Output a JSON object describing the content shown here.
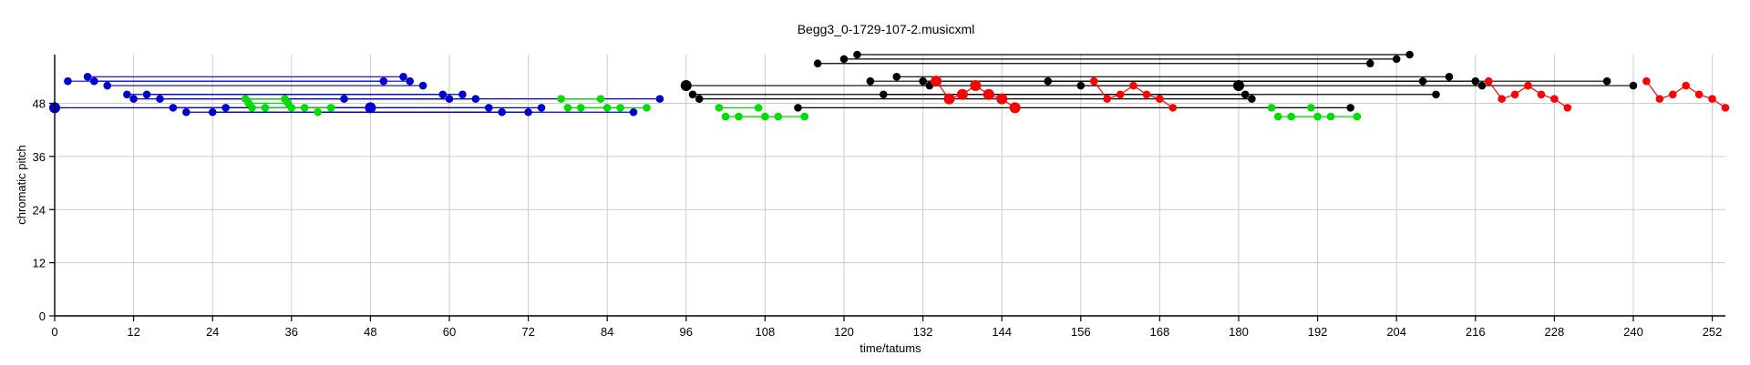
{
  "chart_data": {
    "type": "scatter",
    "title": "Begg3_0-1729-107-2.musicxml",
    "xlabel": "time/tatums",
    "ylabel": "chromatic pitch",
    "xlim": [
      0,
      254
    ],
    "ylim": [
      0,
      59
    ],
    "xticks": [
      0,
      12,
      24,
      36,
      48,
      60,
      72,
      84,
      96,
      108,
      120,
      132,
      144,
      156,
      168,
      180,
      192,
      204,
      216,
      228,
      240,
      252
    ],
    "yticks": [
      0,
      12,
      24,
      36,
      48
    ],
    "grid": true,
    "colors": {
      "blue": "#0000cc",
      "green": "#00dd00",
      "black": "#000000",
      "red": "#ff0000",
      "grid": "#cccccc"
    },
    "series": [
      {
        "color": "blue",
        "points": [
          [
            2,
            53,
            "s"
          ],
          [
            5,
            54,
            "s"
          ],
          [
            6,
            53,
            "s"
          ],
          [
            8,
            52,
            "s"
          ],
          [
            11,
            50,
            "s"
          ],
          [
            12,
            49,
            "s"
          ],
          [
            14,
            50,
            "s"
          ],
          [
            16,
            49,
            "s"
          ],
          [
            18,
            47,
            "s"
          ],
          [
            20,
            46,
            "s"
          ],
          [
            24,
            46,
            "s"
          ],
          [
            26,
            47,
            "s"
          ],
          [
            44,
            49,
            "s"
          ],
          [
            50,
            53,
            "s"
          ],
          [
            53,
            54,
            "s"
          ],
          [
            54,
            53,
            "s"
          ],
          [
            56,
            52,
            "s"
          ],
          [
            59,
            50,
            "s"
          ],
          [
            60,
            49,
            "s"
          ],
          [
            62,
            50,
            "s"
          ],
          [
            64,
            49,
            "s"
          ],
          [
            66,
            47,
            "s"
          ],
          [
            68,
            46,
            "s"
          ],
          [
            72,
            46,
            "s"
          ],
          [
            74,
            47,
            "s"
          ],
          [
            88,
            46,
            "s"
          ],
          [
            92,
            49,
            "s"
          ],
          [
            0,
            47,
            "l"
          ],
          [
            48,
            47,
            "l"
          ]
        ],
        "segments": [
          [
            0,
            47,
            48,
            47
          ],
          [
            2,
            53,
            50,
            53
          ],
          [
            5,
            54,
            53,
            54
          ],
          [
            6,
            53,
            54,
            53
          ],
          [
            8,
            52,
            56,
            52
          ],
          [
            11,
            50,
            59,
            50
          ],
          [
            12,
            49,
            60,
            49
          ],
          [
            14,
            50,
            62,
            50
          ],
          [
            16,
            49,
            64,
            49
          ],
          [
            18,
            47,
            66,
            47
          ],
          [
            20,
            46,
            68,
            46
          ],
          [
            24,
            46,
            72,
            46
          ],
          [
            26,
            47,
            74,
            47
          ],
          [
            44,
            49,
            92,
            49
          ],
          [
            40,
            46,
            88,
            46
          ]
        ]
      },
      {
        "color": "green",
        "points": [
          [
            29,
            49,
            "s"
          ],
          [
            29.5,
            48,
            "s"
          ],
          [
            30,
            47,
            "s"
          ],
          [
            32,
            47,
            "s"
          ],
          [
            35,
            49,
            "s"
          ],
          [
            35.5,
            48,
            "s"
          ],
          [
            36,
            47,
            "s"
          ],
          [
            38,
            47,
            "s"
          ],
          [
            40,
            46,
            "s"
          ],
          [
            42,
            47,
            "s"
          ],
          [
            77,
            49,
            "s"
          ],
          [
            78,
            47,
            "s"
          ],
          [
            80,
            47,
            "s"
          ],
          [
            83,
            49,
            "s"
          ],
          [
            84,
            47,
            "s"
          ],
          [
            86,
            47,
            "s"
          ],
          [
            90,
            47,
            "s"
          ],
          [
            101,
            47,
            "s"
          ],
          [
            102,
            45,
            "s"
          ],
          [
            104,
            45,
            "s"
          ],
          [
            107,
            47,
            "s"
          ],
          [
            108,
            45,
            "s"
          ],
          [
            110,
            45,
            "s"
          ],
          [
            114,
            45,
            "s"
          ],
          [
            185,
            47,
            "s"
          ],
          [
            186,
            45,
            "s"
          ],
          [
            188,
            45,
            "s"
          ],
          [
            191,
            47,
            "s"
          ],
          [
            192,
            45,
            "s"
          ],
          [
            194,
            45,
            "s"
          ],
          [
            198,
            45,
            "s"
          ]
        ],
        "segments": [
          [
            29,
            49,
            35,
            49
          ],
          [
            29.5,
            48,
            35.5,
            48
          ],
          [
            30,
            47,
            36,
            47
          ],
          [
            32,
            47,
            38,
            47
          ],
          [
            36,
            47,
            42,
            47
          ],
          [
            77,
            49,
            83,
            49
          ],
          [
            78,
            47,
            84,
            47
          ],
          [
            80,
            47,
            86,
            47
          ],
          [
            84,
            47,
            90,
            47
          ],
          [
            101,
            47,
            107,
            47
          ],
          [
            102,
            45,
            108,
            45
          ],
          [
            104,
            45,
            110,
            45
          ],
          [
            108,
            45,
            114,
            45
          ],
          [
            185,
            47,
            191,
            47
          ],
          [
            186,
            45,
            192,
            45
          ],
          [
            188,
            45,
            194,
            45
          ],
          [
            192,
            45,
            198,
            45
          ]
        ]
      },
      {
        "color": "black",
        "points": [
          [
            96,
            52,
            "l"
          ],
          [
            97,
            50,
            "s"
          ],
          [
            98,
            49,
            "s"
          ],
          [
            113,
            47,
            "s"
          ],
          [
            116,
            57,
            "s"
          ],
          [
            120,
            58,
            "s"
          ],
          [
            122,
            59,
            "s"
          ],
          [
            124,
            53,
            "s"
          ],
          [
            126,
            50,
            "s"
          ],
          [
            128,
            54,
            "s"
          ],
          [
            132,
            53,
            "s"
          ],
          [
            133,
            52,
            "s"
          ],
          [
            151,
            53,
            "s"
          ],
          [
            156,
            52,
            "s"
          ],
          [
            180,
            52,
            "l"
          ],
          [
            181,
            50,
            "s"
          ],
          [
            182,
            49,
            "s"
          ],
          [
            197,
            47,
            "s"
          ],
          [
            200,
            57,
            "s"
          ],
          [
            204,
            58,
            "s"
          ],
          [
            206,
            59,
            "s"
          ],
          [
            208,
            53,
            "s"
          ],
          [
            210,
            50,
            "s"
          ],
          [
            212,
            54,
            "s"
          ],
          [
            216,
            53,
            "s"
          ],
          [
            217,
            52,
            "s"
          ],
          [
            236,
            53,
            "s"
          ],
          [
            240,
            52,
            "s"
          ]
        ],
        "segments": [
          [
            96,
            52,
            180,
            52
          ],
          [
            97,
            50,
            181,
            50
          ],
          [
            98,
            49,
            182,
            49
          ],
          [
            113,
            47,
            197,
            47
          ],
          [
            116,
            57,
            200,
            57
          ],
          [
            120,
            58,
            204,
            58
          ],
          [
            122,
            59,
            206,
            59
          ],
          [
            124,
            53,
            208,
            53
          ],
          [
            126,
            50,
            210,
            50
          ],
          [
            128,
            54,
            212,
            54
          ],
          [
            132,
            53,
            216,
            53
          ],
          [
            133,
            52,
            217,
            52
          ],
          [
            151,
            53,
            236,
            53
          ],
          [
            156,
            52,
            240,
            52
          ]
        ]
      },
      {
        "color": "red",
        "points": [
          [
            134,
            53,
            "l"
          ],
          [
            136,
            49,
            "l"
          ],
          [
            138,
            50,
            "l"
          ],
          [
            140,
            52,
            "l"
          ],
          [
            142,
            50,
            "l"
          ],
          [
            144,
            49,
            "l"
          ],
          [
            146,
            47,
            "l"
          ],
          [
            158,
            53,
            "s"
          ],
          [
            160,
            49,
            "s"
          ],
          [
            162,
            50,
            "s"
          ],
          [
            164,
            52,
            "s"
          ],
          [
            166,
            50,
            "s"
          ],
          [
            168,
            49,
            "s"
          ],
          [
            170,
            47,
            "s"
          ],
          [
            218,
            53,
            "s"
          ],
          [
            220,
            49,
            "s"
          ],
          [
            222,
            50,
            "s"
          ],
          [
            224,
            52,
            "s"
          ],
          [
            226,
            50,
            "s"
          ],
          [
            228,
            49,
            "s"
          ],
          [
            230,
            47,
            "s"
          ],
          [
            242,
            53,
            "s"
          ],
          [
            244,
            49,
            "s"
          ],
          [
            246,
            50,
            "s"
          ],
          [
            248,
            52,
            "s"
          ],
          [
            250,
            50,
            "s"
          ],
          [
            252,
            49,
            "s"
          ],
          [
            254,
            47,
            "s"
          ]
        ],
        "segments": [
          [
            134,
            53,
            136,
            49
          ],
          [
            136,
            49,
            138,
            50
          ],
          [
            138,
            50,
            140,
            52
          ],
          [
            140,
            52,
            142,
            50
          ],
          [
            142,
            50,
            144,
            49
          ],
          [
            144,
            49,
            146,
            47
          ],
          [
            158,
            53,
            160,
            49
          ],
          [
            160,
            49,
            162,
            50
          ],
          [
            162,
            50,
            164,
            52
          ],
          [
            164,
            52,
            166,
            50
          ],
          [
            166,
            50,
            168,
            49
          ],
          [
            168,
            49,
            170,
            47
          ],
          [
            218,
            53,
            220,
            49
          ],
          [
            220,
            49,
            222,
            50
          ],
          [
            222,
            50,
            224,
            52
          ],
          [
            224,
            52,
            226,
            50
          ],
          [
            226,
            50,
            228,
            49
          ],
          [
            228,
            49,
            230,
            47
          ],
          [
            242,
            53,
            244,
            49
          ],
          [
            244,
            49,
            246,
            50
          ],
          [
            246,
            50,
            248,
            52
          ],
          [
            248,
            52,
            250,
            50
          ],
          [
            250,
            50,
            252,
            49
          ],
          [
            252,
            49,
            254,
            47
          ]
        ]
      }
    ]
  }
}
